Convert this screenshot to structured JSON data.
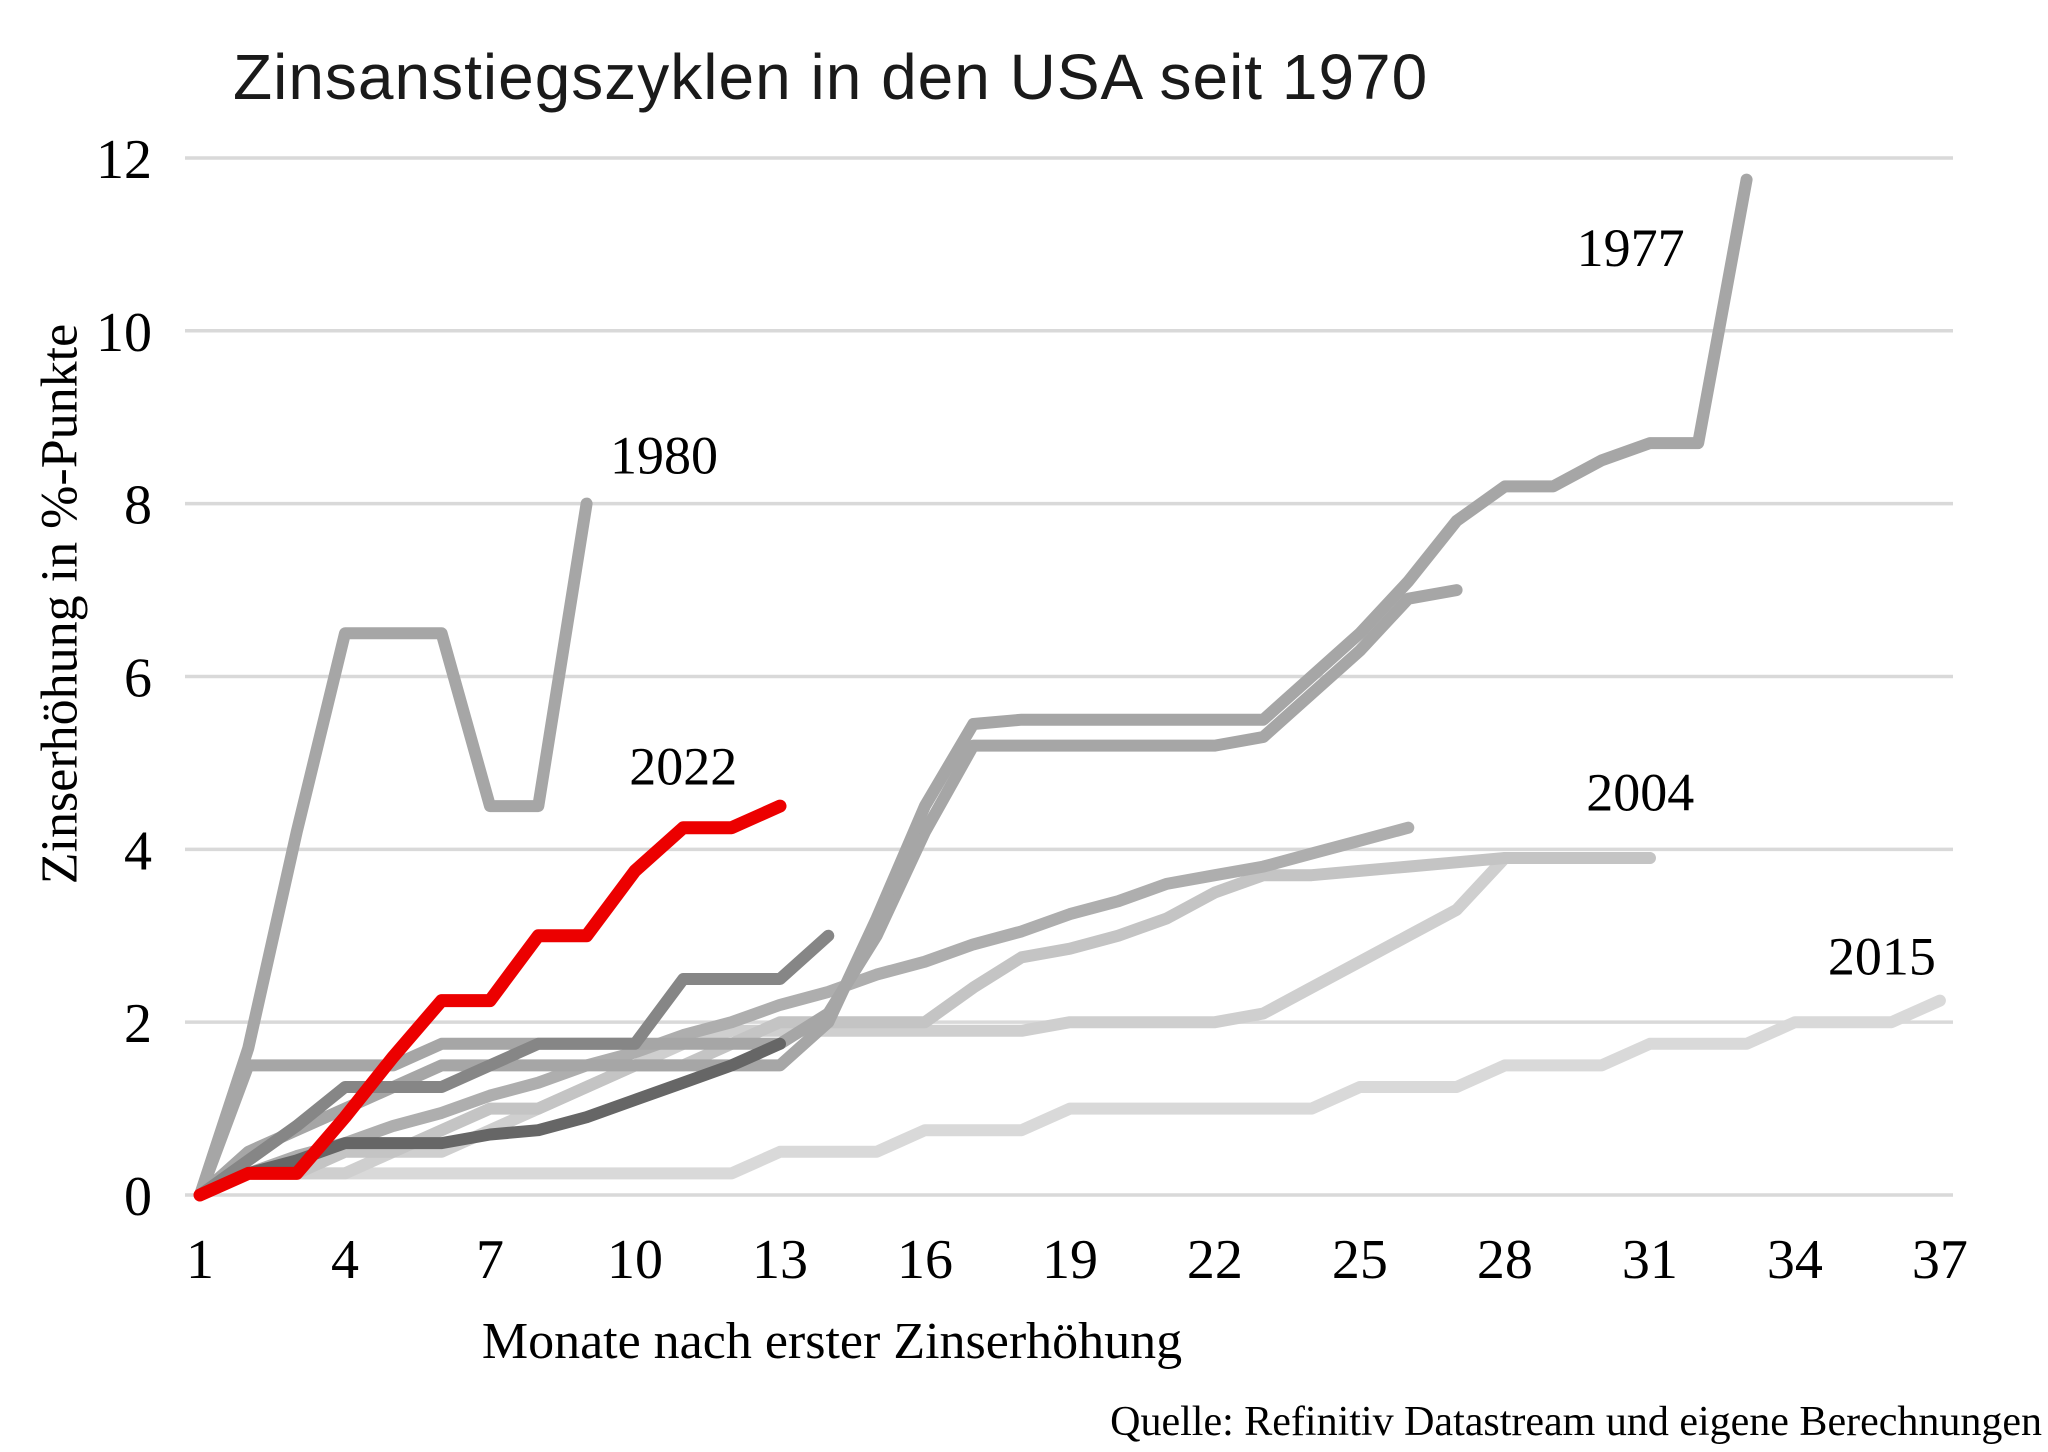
{
  "title": "Zinsanstiegszyklen in den USA seit 1970",
  "source": "Quelle: Refinitiv Datastream und eigene Berechnungen",
  "chart_data": {
    "type": "line",
    "title": "Zinsanstiegszyklen in den USA seit 1970",
    "xlabel": "Monate nach erster Zinserhöhung",
    "ylabel": "Zinserhöhung in %-Punkte",
    "xlim": [
      1,
      38
    ],
    "ylim": [
      0,
      12
    ],
    "x_ticks": [
      1,
      4,
      7,
      10,
      13,
      16,
      19,
      22,
      25,
      28,
      31,
      34,
      37
    ],
    "y_ticks": [
      0,
      2,
      4,
      6,
      8,
      10,
      12
    ],
    "grid": "horizontal",
    "gridline_color": "#d9d9d9",
    "background": "#ffffff",
    "accent_red": "#ec0000",
    "legend_position": "none",
    "series": [
      {
        "name": "cycle-2015",
        "label": "2015",
        "color": "#d9d9d9",
        "width": 12,
        "start_month": 1,
        "values": [
          0,
          0.25,
          0.25,
          0.25,
          0.25,
          0.25,
          0.25,
          0.25,
          0.25,
          0.25,
          0.25,
          0.25,
          0.5,
          0.5,
          0.5,
          0.75,
          0.75,
          0.75,
          1.0,
          1.0,
          1.0,
          1.0,
          1.0,
          1.0,
          1.25,
          1.25,
          1.25,
          1.5,
          1.5,
          1.5,
          1.75,
          1.75,
          1.75,
          2.0,
          2.0,
          2.0,
          2.25
        ]
      },
      {
        "name": "cycle-unlabeled-light",
        "label": null,
        "color": "#cfcfcf",
        "width": 12,
        "start_month": 1,
        "values": [
          0,
          0.25,
          0.25,
          0.25,
          0.5,
          0.5,
          0.75,
          1.0,
          1.25,
          1.5,
          1.75,
          1.9,
          1.9,
          1.9,
          1.9,
          1.9,
          1.9,
          1.9,
          2.0,
          2.0,
          2.0,
          2.0,
          2.1,
          2.4,
          2.7,
          3.0,
          3.3,
          3.9,
          3.9,
          3.9,
          3.9
        ]
      },
      {
        "name": "cycle-unlabeled-midlight",
        "label": null,
        "color": "#c4c4c4",
        "width": 12,
        "start_month": 1,
        "values": [
          0,
          0.25,
          0.25,
          0.5,
          0.5,
          0.75,
          1.0,
          1.0,
          1.25,
          1.5,
          1.5,
          1.75,
          2.0,
          2.0,
          2.0,
          2.0,
          2.4,
          2.75,
          2.85,
          3.0,
          3.2,
          3.5,
          3.7,
          3.7,
          3.75,
          3.8,
          3.85,
          3.9,
          3.9,
          3.9,
          3.9
        ]
      },
      {
        "name": "cycle-2004",
        "label": "2004",
        "color": "#aeaeae",
        "width": 12,
        "start_month": 1,
        "values": [
          0,
          0.25,
          0.45,
          0.6,
          0.8,
          0.95,
          1.15,
          1.3,
          1.5,
          1.65,
          1.85,
          2.0,
          2.2,
          2.35,
          2.55,
          2.7,
          2.9,
          3.05,
          3.25,
          3.4,
          3.6,
          3.7,
          3.8,
          3.95,
          4.1,
          4.25
        ]
      },
      {
        "name": "cycle-unlabeled-a",
        "label": null,
        "color": "#a6a6a6",
        "width": 12,
        "start_month": 1,
        "values": [
          0,
          1.5,
          1.5,
          1.5,
          1.5,
          1.75,
          1.75,
          1.75,
          1.75,
          1.75,
          1.75,
          1.75,
          1.75,
          2.1,
          3.0,
          4.2,
          5.2,
          5.2,
          5.2,
          5.2,
          5.2,
          5.2,
          5.3,
          5.8,
          6.3,
          6.9,
          7.0
        ]
      },
      {
        "name": "cycle-1977",
        "label": "1977",
        "color": "#a6a6a6",
        "width": 12,
        "start_month": 1,
        "values": [
          0,
          0.5,
          0.75,
          1.0,
          1.25,
          1.5,
          1.5,
          1.5,
          1.5,
          1.5,
          1.5,
          1.5,
          1.5,
          2.0,
          3.2,
          4.5,
          5.45,
          5.5,
          5.5,
          5.5,
          5.5,
          5.5,
          5.5,
          6.0,
          6.5,
          7.1,
          7.8,
          8.2,
          8.2,
          8.5,
          8.7,
          8.7,
          11.75
        ]
      },
      {
        "name": "cycle-1980",
        "label": "1980",
        "color": "#a6a6a6",
        "width": 12,
        "start_month": 1,
        "values": [
          0,
          1.7,
          4.2,
          6.5,
          6.5,
          6.5,
          4.5,
          4.5,
          8.0
        ]
      },
      {
        "name": "cycle-unlabeled-b",
        "label": null,
        "color": "#868686",
        "width": 12,
        "start_month": 1,
        "values": [
          0,
          0.4,
          0.8,
          1.25,
          1.25,
          1.25,
          1.5,
          1.75,
          1.75,
          1.75,
          2.5,
          2.5,
          2.5,
          3.0
        ]
      },
      {
        "name": "cycle-unlabeled-c",
        "label": null,
        "color": "#666666",
        "width": 12,
        "start_month": 1,
        "values": [
          0,
          0.25,
          0.4,
          0.6,
          0.6,
          0.6,
          0.7,
          0.75,
          0.9,
          1.1,
          1.3,
          1.5,
          1.75
        ]
      },
      {
        "name": "cycle-2022",
        "label": "2022",
        "color": "#ec0000",
        "width": 13,
        "start_month": 1,
        "values": [
          0,
          0.25,
          0.25,
          0.9,
          1.6,
          2.25,
          2.25,
          3.0,
          3.0,
          3.75,
          4.25,
          4.25,
          4.5
        ]
      }
    ],
    "annotations": [
      {
        "text": "1977",
        "month": 30.6,
        "value": 10.75
      },
      {
        "text": "1980",
        "month": 10.6,
        "value": 8.35
      },
      {
        "text": "2022",
        "month": 11.0,
        "value": 4.75
      },
      {
        "text": "2004",
        "month": 30.8,
        "value": 4.45
      },
      {
        "text": "2015",
        "month": 35.8,
        "value": 2.55
      }
    ]
  }
}
